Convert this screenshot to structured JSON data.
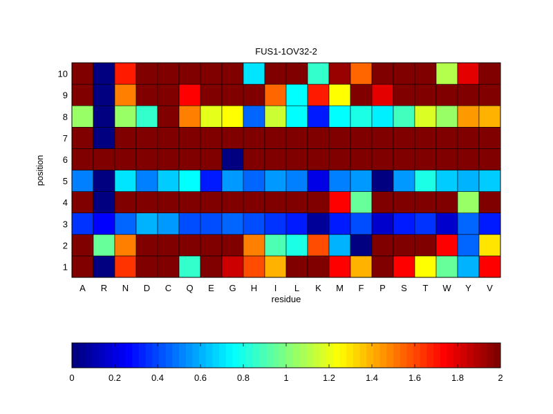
{
  "chart_data": {
    "type": "heatmap",
    "title": "FUS1-1OV32-2",
    "xlabel": "residue",
    "ylabel": "position",
    "x_categories": [
      "A",
      "R",
      "N",
      "D",
      "C",
      "Q",
      "E",
      "G",
      "H",
      "I",
      "L",
      "K",
      "M",
      "F",
      "P",
      "S",
      "T",
      "W",
      "Y",
      "V"
    ],
    "y_categories": [
      "1",
      "2",
      "3",
      "4",
      "5",
      "6",
      "7",
      "8",
      "9",
      "10"
    ],
    "colormap": "jet",
    "clim": [
      0,
      2
    ],
    "colorbar": {
      "placement": "bottom",
      "ticks": [
        "0",
        "0.2",
        "0.4",
        "0.6",
        "0.8",
        "1",
        "1.2",
        "1.4",
        "1.6",
        "1.8",
        "2"
      ]
    },
    "values_by_position": [
      [
        2,
        0,
        1.65,
        2,
        2,
        0.85,
        2,
        1.85,
        1.6,
        1.4,
        2,
        2,
        1.75,
        1.4,
        2,
        1.75,
        1.25,
        0.95,
        0.6,
        1.75
      ],
      [
        2,
        0.95,
        1.5,
        2,
        2,
        2,
        2,
        2,
        1.5,
        0.9,
        0.8,
        1.6,
        0.6,
        0,
        2,
        2,
        2,
        1.75,
        0.45,
        1.3
      ],
      [
        0.35,
        0.25,
        0.45,
        0.6,
        0.55,
        0.4,
        0.4,
        0.45,
        0.4,
        0.35,
        0.3,
        0.05,
        0.3,
        0.4,
        0.15,
        0.3,
        0.35,
        0.15,
        0.45,
        0.3
      ],
      [
        2,
        0,
        2,
        2,
        2,
        2,
        2,
        2,
        2,
        2,
        2,
        2,
        1.75,
        0.95,
        2,
        2,
        2,
        2,
        1.05,
        2
      ],
      [
        0.5,
        0,
        0.7,
        0.5,
        0.65,
        0.75,
        0.3,
        0.55,
        0.45,
        0.55,
        0.5,
        0.2,
        0.5,
        0.55,
        0,
        0.55,
        0.8,
        0.65,
        0.6,
        0.65
      ],
      [
        2,
        2,
        2,
        2,
        2,
        2,
        2,
        0,
        2,
        2,
        2,
        2,
        2,
        2,
        2,
        2,
        2,
        2,
        2,
        2
      ],
      [
        2,
        0,
        2,
        2,
        2,
        2,
        2,
        2,
        2,
        2,
        2,
        2,
        2,
        2,
        2,
        2,
        2,
        2,
        2,
        2
      ],
      [
        1.05,
        0,
        1.05,
        0.85,
        2,
        1.5,
        1.2,
        1.25,
        0.45,
        1.15,
        0.75,
        0.3,
        0.75,
        0.8,
        0.72,
        0.88,
        1.18,
        1.05,
        1.45,
        1.4
      ],
      [
        2,
        0,
        1.5,
        2,
        2,
        1.75,
        2,
        2,
        2,
        1.55,
        0.75,
        1.7,
        1.25,
        2,
        1.8,
        2,
        2,
        2,
        2,
        2
      ],
      [
        2,
        0,
        1.7,
        2,
        2,
        2,
        2,
        2,
        0.7,
        2,
        2,
        0.85,
        1.95,
        1.55,
        2,
        2,
        2,
        1.1,
        1.8,
        2
      ]
    ]
  }
}
